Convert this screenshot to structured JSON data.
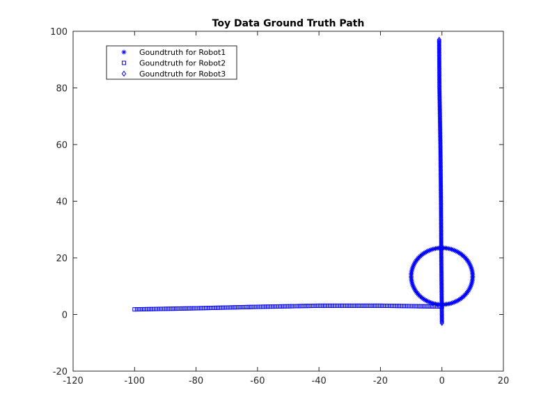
{
  "chart_data": {
    "type": "scatter",
    "title": "Toy Data Ground Truth Path",
    "xlabel": "",
    "ylabel": "",
    "xlim": [
      -120,
      20
    ],
    "ylim": [
      -20,
      100
    ],
    "xticks": [
      -120,
      -100,
      -80,
      -60,
      -40,
      -20,
      0,
      20
    ],
    "yticks": [
      -20,
      0,
      20,
      40,
      60,
      80,
      100
    ],
    "grid": false,
    "legend_position": "top-left",
    "marker_color": "#0000ff",
    "series": [
      {
        "name": "Goundtruth for Robot1",
        "marker": "asterisk",
        "path": {
          "shape": "circle",
          "center": [
            0,
            13.5
          ],
          "radius": 10,
          "start_angle_deg": -90,
          "points": 120
        }
      },
      {
        "name": "Goundtruth for Robot2",
        "marker": "square",
        "path": {
          "shape": "polyline",
          "vertices": [
            [
              -100,
              1.8
            ],
            [
              -80,
              2.2
            ],
            [
              -60,
              2.7
            ],
            [
              -40,
              3.1
            ],
            [
              -20,
              3.1
            ],
            [
              0,
              2.8
            ]
          ],
          "points": 130
        }
      },
      {
        "name": "Goundtruth for Robot3",
        "marker": "diamond",
        "path": {
          "shape": "polyline",
          "vertices": [
            [
              0,
              -3
            ],
            [
              -0.2,
              20
            ],
            [
              -0.3,
              40
            ],
            [
              -0.5,
              60
            ],
            [
              -0.8,
              80
            ],
            [
              -0.9,
              97
            ]
          ],
          "points": 200
        }
      }
    ]
  }
}
